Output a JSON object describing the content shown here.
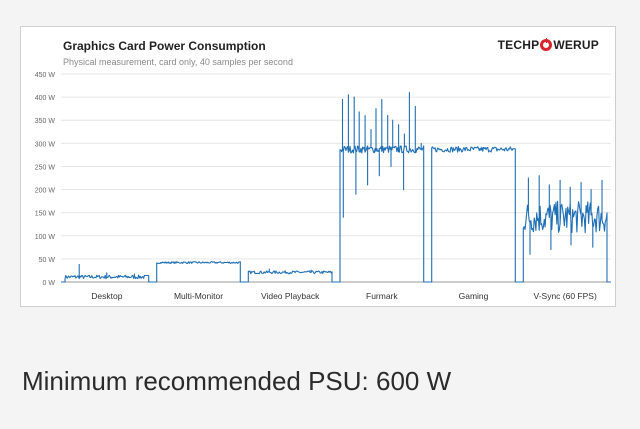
{
  "chart_data": {
    "type": "line",
    "title": "Graphics  Card Power Consumption",
    "subtitle": "Physical measurement, card only, 40 samples per second",
    "ylim": [
      0,
      450
    ],
    "ytick_values": [
      0,
      50,
      100,
      150,
      200,
      250,
      300,
      350,
      400,
      450
    ],
    "ytick_labels": [
      "0 W",
      "50 W",
      "100 W",
      "150 W",
      "200 W",
      "250 W",
      "300 W",
      "350 W",
      "400 W",
      "450 W"
    ],
    "grid": true,
    "color": "#1f6fb5",
    "segments": [
      {
        "category": "Desktop",
        "mean": 11,
        "noise": 4,
        "spikes": [
          38,
          20,
          17
        ]
      },
      {
        "category": "Multi-Monitor",
        "mean": 42,
        "noise": 2,
        "spikes": []
      },
      {
        "category": "Video Playback",
        "mean": 21,
        "noise": 3,
        "spikes": [
          28,
          26
        ]
      },
      {
        "category": "Furmark",
        "mean": 287,
        "noise": 8,
        "spikes": [
          395,
          405,
          400,
          368,
          360,
          330,
          375,
          395,
          360,
          350,
          340,
          320,
          410,
          380,
          300
        ],
        "dips": [
          140,
          190,
          210,
          230,
          250,
          200,
          220
        ]
      },
      {
        "category": "Gaming",
        "mean": 287,
        "noise": 6,
        "spikes": [],
        "dips": []
      },
      {
        "category": "V-Sync (60 FPS)",
        "mean": 140,
        "noise": 35,
        "spikes": [
          225,
          230,
          210,
          220,
          205,
          215,
          200,
          220
        ],
        "dips": [
          60,
          70,
          80,
          75
        ]
      }
    ]
  },
  "logo_text": {
    "left": "TECHP",
    "right": "WERUP"
  },
  "psu_caption": "Minimum recommended PSU: 600 W"
}
